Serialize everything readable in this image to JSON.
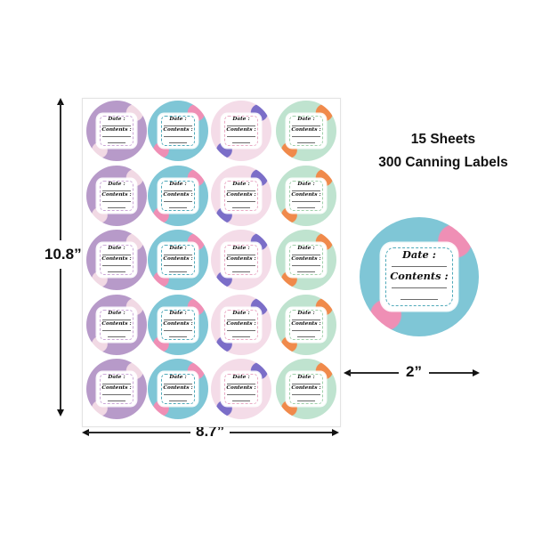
{
  "headline": {
    "line1": "15 Sheets",
    "line2": "300 Canning Labels"
  },
  "dimensions": {
    "sheet_height": "10.8”",
    "sheet_width": "8.7”",
    "label_diameter": "2”"
  },
  "label_text": {
    "date": "Date :",
    "contents": "Contents :"
  },
  "sheet": {
    "rows": 5,
    "columns": 4,
    "column_themes": [
      "purple-floral",
      "blue-rose",
      "lavender-wildflower",
      "mint-orange-floral"
    ]
  },
  "themes": {
    "purple-floral": {
      "bg": "#b79ac9",
      "accent": "#f1d9e4",
      "frame": "#caa6d6"
    },
    "blue-rose": {
      "bg": "#7fc6d6",
      "accent": "#ef8fb5",
      "frame": "#4fa9b9"
    },
    "lavender-wildflower": {
      "bg": "#f4dce8",
      "accent": "#7b6ec8",
      "frame": "#e9a9c4"
    },
    "mint-orange-floral": {
      "bg": "#bfe3cf",
      "accent": "#f08a4b",
      "frame": "#9fcfa9"
    }
  },
  "colors": {
    "text": "#111111",
    "arrow": "#2b2b2b",
    "sheet_border": "#e3e3e3"
  }
}
